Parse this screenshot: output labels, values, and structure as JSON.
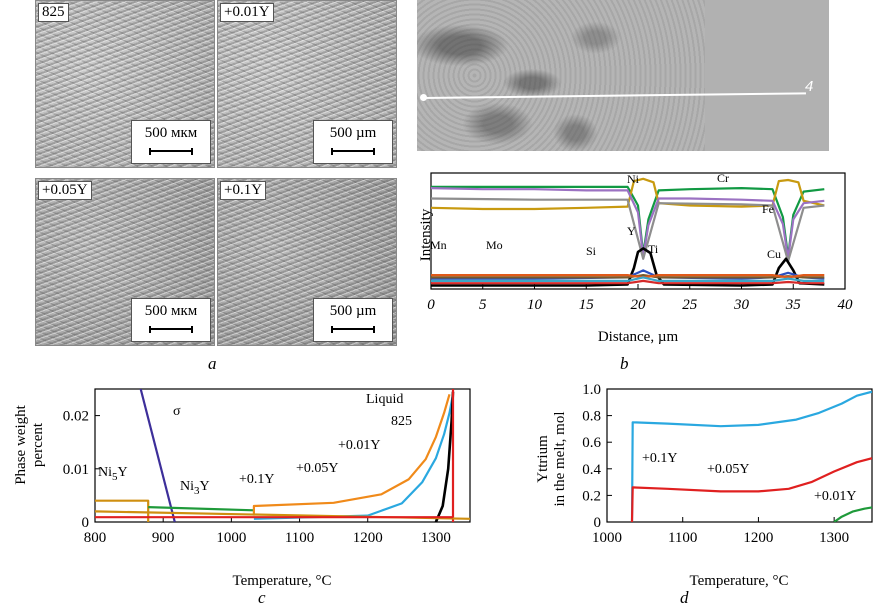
{
  "panels": {
    "a": {
      "label": "a",
      "images": [
        {
          "tag": "825",
          "scale": "500 мкм"
        },
        {
          "tag": "+0.01Y",
          "scale": "500 µm"
        },
        {
          "tag": "+0.05Y",
          "scale": "500 мкм"
        },
        {
          "tag": "+0.1Y",
          "scale": "500 µm"
        }
      ]
    },
    "b": {
      "label": "b",
      "bse_marker": "4"
    },
    "c": {
      "label": "c"
    },
    "d": {
      "label": "d"
    }
  },
  "chart_data": [
    {
      "type": "line",
      "panel": "b",
      "xlabel": "Distance, µm",
      "ylabel": "Intensity",
      "xlim": [
        0,
        40
      ],
      "xticks": [
        0,
        5,
        10,
        15,
        20,
        25,
        30,
        35,
        40
      ],
      "yticks_shown": false,
      "ylim": [
        0,
        1
      ],
      "series": [
        {
          "name": "Cr",
          "color": "#119943",
          "x": [
            0,
            5,
            10,
            15,
            19,
            20,
            20.5,
            21,
            22,
            25,
            30,
            33,
            34,
            34.5,
            35,
            36,
            38
          ],
          "y": [
            0.88,
            0.88,
            0.88,
            0.88,
            0.88,
            0.72,
            0.3,
            0.6,
            0.85,
            0.86,
            0.87,
            0.86,
            0.62,
            0.28,
            0.64,
            0.84,
            0.86
          ]
        },
        {
          "name": "Ni",
          "color": "#c89a10",
          "x": [
            0,
            5,
            10,
            15,
            19,
            19.6,
            20.5,
            21.5,
            22,
            25,
            30,
            33,
            33.6,
            34.5,
            35.5,
            36,
            38
          ],
          "y": [
            0.7,
            0.69,
            0.69,
            0.7,
            0.71,
            0.93,
            0.95,
            0.92,
            0.74,
            0.72,
            0.71,
            0.72,
            0.93,
            0.94,
            0.92,
            0.76,
            0.72
          ]
        },
        {
          "name": "Fe",
          "color": "#9b72c2",
          "x": [
            0,
            5,
            10,
            15,
            19,
            20,
            20.5,
            21,
            22,
            25,
            30,
            33,
            34,
            34.5,
            35,
            36,
            38
          ],
          "y": [
            0.87,
            0.86,
            0.86,
            0.85,
            0.85,
            0.66,
            0.28,
            0.55,
            0.78,
            0.78,
            0.77,
            0.76,
            0.56,
            0.26,
            0.6,
            0.74,
            0.76
          ]
        },
        {
          "name": "Fe",
          "color": "#8e8e8e",
          "x": [
            0,
            10,
            19,
            20.5,
            22,
            30,
            33,
            34.5,
            36,
            38
          ],
          "y": [
            0.78,
            0.77,
            0.77,
            0.26,
            0.74,
            0.73,
            0.72,
            0.24,
            0.7,
            0.72
          ]
        },
        {
          "name": "Y",
          "color": "#000000",
          "x": [
            0,
            15,
            19,
            19.6,
            20,
            20.5,
            21.2,
            21.8,
            22.5,
            30,
            33,
            33.6,
            34.3,
            35,
            35.6,
            38
          ],
          "y": [
            0.03,
            0.03,
            0.04,
            0.18,
            0.32,
            0.35,
            0.31,
            0.12,
            0.04,
            0.03,
            0.04,
            0.18,
            0.26,
            0.16,
            0.05,
            0.04
          ]
        },
        {
          "name": "Ti",
          "color": "#2b4fbf",
          "x": [
            0,
            10,
            19,
            20.5,
            22,
            30,
            33,
            34.5,
            36,
            38
          ],
          "y": [
            0.09,
            0.09,
            0.1,
            0.16,
            0.1,
            0.09,
            0.1,
            0.14,
            0.1,
            0.09
          ]
        },
        {
          "name": "Mo",
          "color": "#7a5a2a",
          "x": [
            0,
            10,
            19,
            20.5,
            22,
            30,
            33,
            34.5,
            36,
            38
          ],
          "y": [
            0.1,
            0.1,
            0.1,
            0.12,
            0.1,
            0.1,
            0.1,
            0.11,
            0.1,
            0.1
          ]
        },
        {
          "name": "Mn",
          "color": "#e05a1a",
          "x": [
            0,
            10,
            19,
            20.5,
            22,
            30,
            33,
            34.5,
            36,
            38
          ],
          "y": [
            0.12,
            0.12,
            0.12,
            0.1,
            0.12,
            0.12,
            0.12,
            0.1,
            0.12,
            0.12
          ]
        },
        {
          "name": "Si",
          "color": "#3aa6c7",
          "x": [
            0,
            10,
            19,
            20.5,
            22,
            30,
            33,
            34.5,
            36,
            38
          ],
          "y": [
            0.07,
            0.07,
            0.07,
            0.1,
            0.07,
            0.07,
            0.07,
            0.09,
            0.07,
            0.07
          ]
        },
        {
          "name": "Cu",
          "color": "#d42a2a",
          "x": [
            0,
            10,
            19,
            20.5,
            22,
            30,
            33,
            34.5,
            36,
            38
          ],
          "y": [
            0.05,
            0.05,
            0.05,
            0.07,
            0.05,
            0.05,
            0.05,
            0.06,
            0.05,
            0.05
          ]
        }
      ],
      "labels": [
        "Mn",
        "Mo",
        "Si",
        "Y",
        "Ti",
        "Ni",
        "Cr",
        "Fe",
        "Cu"
      ]
    },
    {
      "type": "line",
      "panel": "c",
      "xlabel": "Temperature, °C",
      "ylabel": [
        "Phase weight",
        "percent"
      ],
      "xlim": [
        800,
        1350
      ],
      "ylim": [
        0,
        0.025
      ],
      "xticks": [
        800,
        900,
        1000,
        1100,
        1200,
        1300
      ],
      "yticks": [
        0,
        0.01,
        0.02
      ],
      "ytick_labels": [
        "0",
        "0.01",
        "0.02"
      ],
      "series": [
        {
          "name": "σ",
          "color": "#3d2f9a",
          "x": [
            866,
            917
          ],
          "y": [
            0.0255,
            0
          ]
        },
        {
          "name": "Ni5Y",
          "color": "#cf8f10",
          "x": [
            800,
            878,
            878
          ],
          "y": [
            0.004,
            0.004,
            0
          ]
        },
        {
          "name": "Ni3Y",
          "color": "#1f9a3a",
          "x": [
            878,
            1033
          ],
          "y": [
            0.0028,
            0.0022
          ]
        },
        {
          "name": "+0.1Y",
          "color": "#f08a1a",
          "x": [
            1033,
            1033,
            1150,
            1220,
            1260,
            1285,
            1300,
            1312,
            1320
          ],
          "y": [
            0.0012,
            0.003,
            0.0036,
            0.0052,
            0.008,
            0.0118,
            0.016,
            0.0205,
            0.024
          ]
        },
        {
          "name": "+0.05Y",
          "color": "#2aa8e0",
          "x": [
            1033,
            1200,
            1250,
            1280,
            1300,
            1312,
            1320,
            1325
          ],
          "y": [
            0.0006,
            0.0012,
            0.0035,
            0.0075,
            0.012,
            0.0165,
            0.0205,
            0.024
          ]
        },
        {
          "name": "+0.01Y",
          "color": "#000000",
          "x": [
            1300,
            1310,
            1318,
            1323,
            1325
          ],
          "y": [
            0.0,
            0.003,
            0.01,
            0.019,
            0.0245
          ]
        },
        {
          "name": "825",
          "color": "#e02020",
          "x": [
            1325,
            1325
          ],
          "y": [
            0,
            0.025
          ]
        },
        {
          "name": "",
          "color": "#cf8f10",
          "x": [
            800,
            1350
          ],
          "y": [
            0.002,
            0.0006
          ]
        },
        {
          "name": "",
          "color": "#e02020",
          "x": [
            800,
            1325
          ],
          "y": [
            0.0009,
            0.0009
          ]
        }
      ],
      "labels": [
        "σ",
        "Liquid",
        "825",
        "+0.01Y",
        "+0.05Y",
        "+0.1Y",
        "Ni5Y",
        "Ni3Y"
      ]
    },
    {
      "type": "line",
      "panel": "d",
      "xlabel": "Temperature, °C",
      "ylabel": [
        "Yttrium",
        "in the melt, mol"
      ],
      "xlim": [
        1000,
        1350
      ],
      "ylim": [
        0,
        1.0
      ],
      "xticks": [
        1000,
        1100,
        1200,
        1300
      ],
      "yticks": [
        0,
        0.2,
        0.4,
        0.6,
        0.8,
        1.0
      ],
      "ytick_labels": [
        "0",
        "0.2",
        "0.4",
        "0.6",
        "0.8",
        "1.0"
      ],
      "series": [
        {
          "name": "+0.1Y",
          "color": "#2aa8e0",
          "x": [
            1033,
            1034,
            1080,
            1150,
            1200,
            1250,
            1280,
            1310,
            1330,
            1350
          ],
          "y": [
            0,
            0.75,
            0.74,
            0.72,
            0.73,
            0.77,
            0.82,
            0.89,
            0.95,
            0.98
          ]
        },
        {
          "name": "+0.05Y",
          "color": "#e02020",
          "x": [
            1033,
            1034,
            1080,
            1150,
            1200,
            1240,
            1270,
            1300,
            1330,
            1350
          ],
          "y": [
            0,
            0.26,
            0.25,
            0.23,
            0.23,
            0.25,
            0.3,
            0.38,
            0.45,
            0.48
          ]
        },
        {
          "name": "+0.01Y",
          "color": "#1f9a3a",
          "x": [
            1300,
            1310,
            1325,
            1340,
            1350
          ],
          "y": [
            0,
            0.04,
            0.08,
            0.1,
            0.11
          ]
        }
      ],
      "labels": [
        "+0.1Y",
        "+0.05Y",
        "+0.01Y"
      ]
    }
  ]
}
